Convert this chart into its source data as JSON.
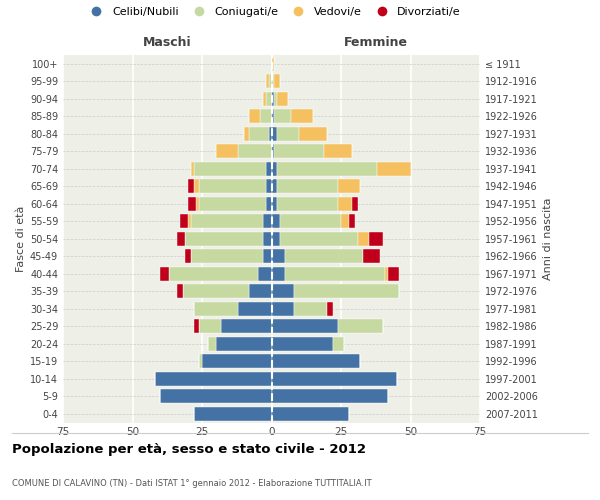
{
  "age_groups": [
    "0-4",
    "5-9",
    "10-14",
    "15-19",
    "20-24",
    "25-29",
    "30-34",
    "35-39",
    "40-44",
    "45-49",
    "50-54",
    "55-59",
    "60-64",
    "65-69",
    "70-74",
    "75-79",
    "80-84",
    "85-89",
    "90-94",
    "95-99",
    "100+"
  ],
  "birth_years": [
    "2007-2011",
    "2002-2006",
    "1997-2001",
    "1992-1996",
    "1987-1991",
    "1982-1986",
    "1977-1981",
    "1972-1976",
    "1967-1971",
    "1962-1966",
    "1957-1961",
    "1952-1956",
    "1947-1951",
    "1942-1946",
    "1937-1941",
    "1932-1936",
    "1927-1931",
    "1922-1926",
    "1917-1921",
    "1912-1916",
    "≤ 1911"
  ],
  "males_celibe": [
    28,
    40,
    42,
    25,
    20,
    18,
    12,
    8,
    5,
    3,
    3,
    3,
    2,
    2,
    2,
    0,
    1,
    0,
    0,
    0,
    0
  ],
  "males_coniugato": [
    0,
    0,
    0,
    1,
    3,
    8,
    16,
    24,
    32,
    26,
    28,
    26,
    24,
    24,
    26,
    12,
    7,
    4,
    2,
    1,
    0
  ],
  "males_vedovo": [
    0,
    0,
    0,
    0,
    0,
    0,
    0,
    0,
    0,
    0,
    0,
    1,
    1,
    2,
    1,
    8,
    2,
    4,
    1,
    1,
    0
  ],
  "males_divorziato": [
    0,
    0,
    0,
    0,
    0,
    2,
    0,
    2,
    3,
    2,
    3,
    3,
    3,
    2,
    0,
    0,
    0,
    0,
    0,
    0,
    0
  ],
  "females_nubile": [
    28,
    42,
    45,
    32,
    22,
    24,
    8,
    8,
    5,
    5,
    3,
    3,
    2,
    2,
    2,
    1,
    2,
    1,
    1,
    0,
    0
  ],
  "females_coniugata": [
    0,
    0,
    0,
    0,
    4,
    16,
    12,
    38,
    36,
    28,
    28,
    22,
    22,
    22,
    36,
    18,
    8,
    6,
    1,
    1,
    0
  ],
  "females_vedova": [
    0,
    0,
    0,
    0,
    0,
    0,
    0,
    0,
    1,
    0,
    4,
    3,
    5,
    8,
    12,
    10,
    10,
    8,
    4,
    2,
    1
  ],
  "females_divorziata": [
    0,
    0,
    0,
    0,
    0,
    0,
    2,
    0,
    4,
    6,
    5,
    2,
    2,
    0,
    0,
    0,
    0,
    0,
    0,
    0,
    0
  ],
  "color_celibe": "#4472a4",
  "color_coniugato": "#c5d9a0",
  "color_vedovo": "#f5c060",
  "color_divorziato": "#c0001a",
  "xlim": 75,
  "title": "Popolazione per età, sesso e stato civile - 2012",
  "subtitle": "COMUNE DI CALAVINO (TN) - Dati ISTAT 1° gennaio 2012 - Elaborazione TUTTITALIA.IT",
  "ylabel_left": "Fasce di età",
  "ylabel_right": "Anni di nascita",
  "label_maschi": "Maschi",
  "label_femmine": "Femmine",
  "legend_labels": [
    "Celibi/Nubili",
    "Coniugati/e",
    "Vedovi/e",
    "Divorziati/e"
  ],
  "bg_color": "#eef0e8"
}
